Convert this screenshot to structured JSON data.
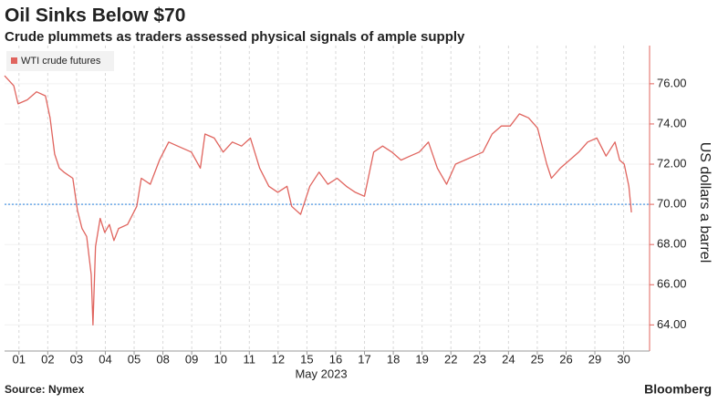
{
  "chart_data": {
    "type": "line",
    "title": "Oil Sinks Below $70",
    "subtitle": "Crude plummets as traders assessed physical signals of ample supply",
    "y_label": "US dollars a barrel",
    "x_label": "May 2023",
    "source": "Source: Nymex",
    "logo": "Bloomberg",
    "legend": "top-left",
    "grid": true,
    "reference_line": {
      "value": 70,
      "color": "#6aa8e8"
    },
    "x": [
      0,
      0.32,
      0.47,
      0.79,
      1.11,
      1.42,
      1.58,
      1.74,
      1.9,
      2.06,
      2.37,
      2.53,
      2.69,
      2.85,
      3.01,
      3.07,
      3.16,
      3.32,
      3.48,
      3.64,
      3.8,
      3.96,
      4.27,
      4.59,
      4.75,
      5.06,
      5.38,
      5.7,
      6.01,
      6.49,
      6.8,
      6.96,
      7.28,
      7.59,
      7.91,
      8.23,
      8.54,
      8.86,
      9.18,
      9.49,
      9.81,
      9.97,
      10.28,
      10.6,
      10.92,
      11.23,
      11.55,
      11.87,
      12.18,
      12.5,
      12.82,
      13.13,
      13.45,
      13.77,
      14.08,
      14.4,
      14.72,
      15.03,
      15.35,
      15.66,
      15.98,
      16.3,
      16.61,
      16.93,
      17.25,
      17.56,
      17.88,
      18.2,
      18.51,
      18.83,
      18.99,
      19.3,
      19.62,
      19.94,
      20.25,
      20.57,
      20.89,
      21.2,
      21.36,
      21.52,
      21.68,
      21.77
    ],
    "series": [
      {
        "name": "WTI crude futures",
        "color": "#e0645e",
        "values": [
          76.4,
          75.9,
          75.0,
          75.2,
          75.6,
          75.4,
          74.3,
          72.5,
          71.8,
          71.6,
          71.3,
          69.7,
          68.8,
          68.4,
          66.5,
          64.0,
          67.9,
          69.3,
          68.6,
          69.0,
          68.2,
          68.8,
          69.0,
          69.9,
          71.3,
          71.0,
          72.2,
          73.1,
          72.9,
          72.6,
          71.8,
          73.5,
          73.3,
          72.6,
          73.1,
          72.9,
          73.3,
          71.8,
          70.9,
          70.6,
          70.9,
          69.9,
          69.5,
          70.9,
          71.6,
          71.0,
          71.3,
          70.9,
          70.6,
          70.4,
          72.6,
          72.9,
          72.6,
          72.2,
          72.4,
          72.6,
          73.1,
          71.8,
          71.0,
          72.0,
          72.2,
          72.4,
          72.6,
          73.5,
          73.9,
          73.9,
          74.5,
          74.3,
          73.8,
          72.0,
          71.3,
          71.8,
          72.2,
          72.6,
          73.1,
          73.3,
          72.4,
          73.1,
          72.2,
          72.0,
          70.9,
          69.6
        ]
      }
    ],
    "xlim": [
      0,
      22.4
    ],
    "xticks": [
      {
        "value": 0.5,
        "label": "01"
      },
      {
        "value": 1.5,
        "label": "02"
      },
      {
        "value": 2.5,
        "label": "03"
      },
      {
        "value": 3.5,
        "label": "04"
      },
      {
        "value": 4.5,
        "label": "05"
      },
      {
        "value": 5.5,
        "label": "08"
      },
      {
        "value": 6.5,
        "label": "09"
      },
      {
        "value": 7.5,
        "label": "10"
      },
      {
        "value": 8.5,
        "label": "11"
      },
      {
        "value": 9.5,
        "label": "12"
      },
      {
        "value": 10.5,
        "label": "15"
      },
      {
        "value": 11.5,
        "label": "16"
      },
      {
        "value": 12.5,
        "label": "17"
      },
      {
        "value": 13.5,
        "label": "18"
      },
      {
        "value": 14.5,
        "label": "19"
      },
      {
        "value": 15.5,
        "label": "22"
      },
      {
        "value": 16.5,
        "label": "23"
      },
      {
        "value": 17.5,
        "label": "24"
      },
      {
        "value": 18.5,
        "label": "25"
      },
      {
        "value": 19.5,
        "label": "26"
      },
      {
        "value": 20.5,
        "label": "29"
      },
      {
        "value": 21.5,
        "label": "30"
      }
    ],
    "ylim": [
      62.7,
      77.9
    ],
    "yticks": [
      {
        "value": 64,
        "label": "64.00"
      },
      {
        "value": 66,
        "label": "66.00"
      },
      {
        "value": 68,
        "label": "68.00"
      },
      {
        "value": 70,
        "label": "70.00"
      },
      {
        "value": 72,
        "label": "72.00"
      },
      {
        "value": 74,
        "label": "74.00"
      },
      {
        "value": 76,
        "label": "76.00"
      }
    ]
  }
}
